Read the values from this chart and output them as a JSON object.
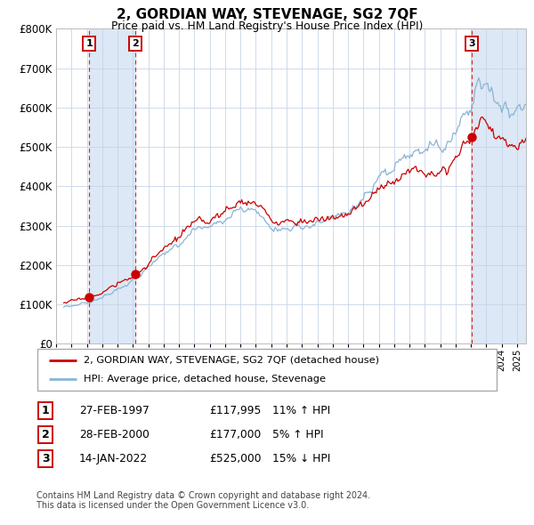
{
  "title": "2, GORDIAN WAY, STEVENAGE, SG2 7QF",
  "subtitle": "Price paid vs. HM Land Registry's House Price Index (HPI)",
  "hpi_line_color": "#8ab4d4",
  "price_line_color": "#cc0000",
  "sale_dot_color": "#cc0000",
  "shade_color": "#dce8f5",
  "grid_color": "#c8d4e8",
  "ylim": [
    0,
    800000
  ],
  "yticks": [
    0,
    100000,
    200000,
    300000,
    400000,
    500000,
    600000,
    700000,
    800000
  ],
  "ytick_labels": [
    "£0",
    "£100K",
    "£200K",
    "£300K",
    "£400K",
    "£500K",
    "£600K",
    "£700K",
    "£800K"
  ],
  "sales": [
    {
      "label": "1",
      "date_str": "27-FEB-1997",
      "date_num": 1997.15,
      "price": 117995,
      "hpi_text": "11% ↑ HPI"
    },
    {
      "label": "2",
      "date_str": "28-FEB-2000",
      "date_num": 2000.15,
      "price": 177000,
      "hpi_text": "5% ↑ HPI"
    },
    {
      "label": "3",
      "date_str": "14-JAN-2022",
      "date_num": 2022.04,
      "price": 525000,
      "hpi_text": "15% ↓ HPI"
    }
  ],
  "legend_line1": "2, GORDIAN WAY, STEVENAGE, SG2 7QF (detached house)",
  "legend_line2": "HPI: Average price, detached house, Stevenage",
  "footer1": "Contains HM Land Registry data © Crown copyright and database right 2024.",
  "footer2": "This data is licensed under the Open Government Licence v3.0.",
  "xmin": 1995.42,
  "xmax": 2025.58
}
